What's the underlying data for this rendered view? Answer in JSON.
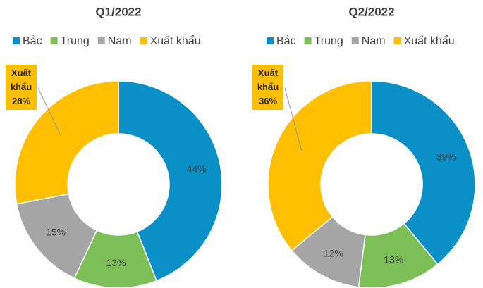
{
  "chart_data": [
    {
      "type": "donut",
      "title": "Q1/2022",
      "categories": [
        "Bắc",
        "Trung",
        "Nam",
        "Xuất khẩu"
      ],
      "values": [
        44,
        13,
        15,
        28
      ],
      "value_labels": [
        "44%",
        "13%",
        "15%",
        "28%"
      ],
      "colors": [
        "#0b8fc7",
        "#7cbf56",
        "#a5a5a5",
        "#fdbf00"
      ]
    },
    {
      "type": "donut",
      "title": "Q2/2022",
      "categories": [
        "Bắc",
        "Trung",
        "Nam",
        "Xuất khẩu"
      ],
      "values": [
        39,
        13,
        12,
        36
      ],
      "value_labels": [
        "39%",
        "13%",
        "12%",
        "36%"
      ],
      "colors": [
        "#0b8fc7",
        "#7cbf56",
        "#a5a5a5",
        "#fdbf00"
      ]
    }
  ]
}
